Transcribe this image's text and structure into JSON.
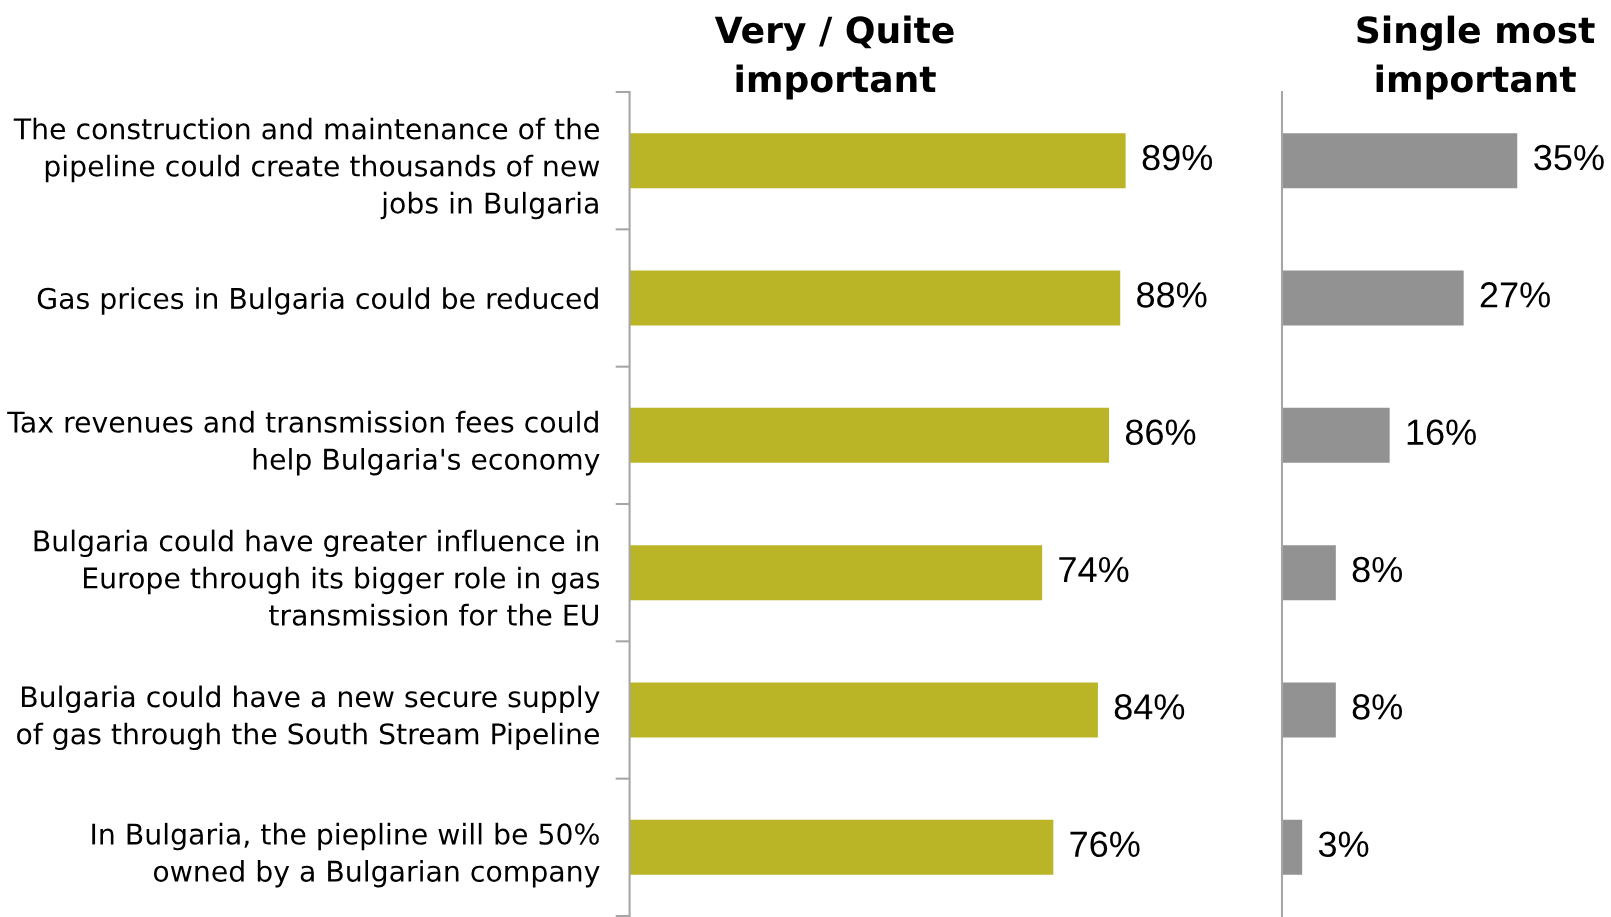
{
  "chart_data": [
    {
      "type": "bar",
      "orientation": "horizontal",
      "title": "Very / Quite\nimportant",
      "categories": [
        "The construction and maintenance of the\npipeline could create thousands of new\njobs in Bulgaria",
        "Gas prices in Bulgaria could be reduced",
        "Tax revenues and transmission fees could\nhelp Bulgaria's economy",
        "Bulgaria could have greater influence in\nEurope through its bigger role in gas\ntransmission for the EU",
        "Bulgaria could have a new secure supply\nof gas through the South Stream Pipeline",
        "In Bulgaria, the piepline will be 50%\nowned by a Bulgarian company"
      ],
      "values": [
        89,
        88,
        86,
        74,
        84,
        76
      ],
      "color": "#bab526",
      "value_labels": [
        "89%",
        "88%",
        "86%",
        "74%",
        "84%",
        "76%"
      ]
    },
    {
      "type": "bar",
      "orientation": "horizontal",
      "title": "Single most\nimportant",
      "categories": [
        null,
        null,
        null,
        null,
        null,
        null
      ],
      "values": [
        35,
        27,
        16,
        8,
        8,
        3
      ],
      "color": "#929292",
      "value_labels": [
        "35%",
        "27%",
        "16%",
        "8%",
        "8%",
        "3%"
      ]
    }
  ]
}
